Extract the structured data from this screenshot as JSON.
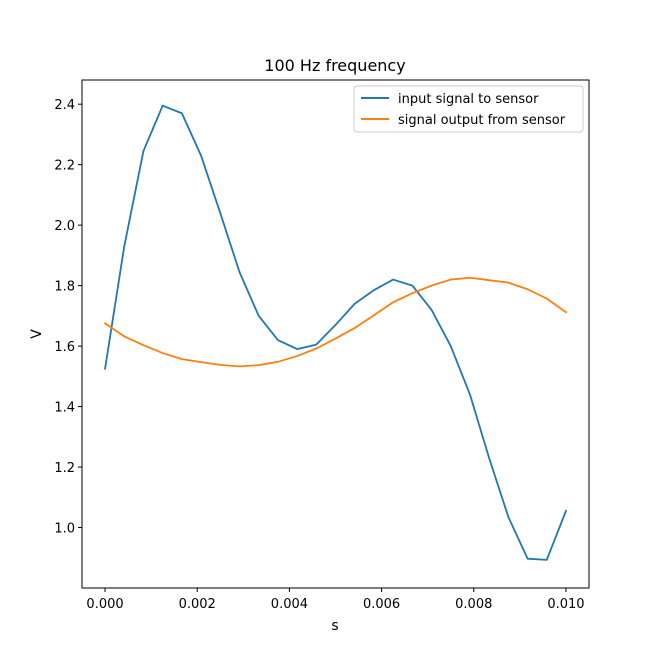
{
  "chart_data": {
    "type": "line",
    "title": "100 Hz frequency",
    "xlabel": "s",
    "ylabel": "V",
    "xlim": [
      -0.0005,
      0.0105
    ],
    "ylim": [
      0.8,
      2.48
    ],
    "grid": false,
    "legend_position": "top-right",
    "x_ticks": [
      0.0,
      0.002,
      0.004,
      0.006,
      0.008,
      0.01
    ],
    "x_tick_labels": [
      "0.000",
      "0.002",
      "0.004",
      "0.006",
      "0.008",
      "0.010"
    ],
    "y_ticks": [
      1.0,
      1.2,
      1.4,
      1.6,
      1.8,
      2.0,
      2.2,
      2.4
    ],
    "y_tick_labels": [
      "1.0",
      "1.2",
      "1.4",
      "1.6",
      "1.8",
      "2.0",
      "2.2",
      "2.4"
    ],
    "x": [
      0.0,
      0.000417,
      0.000833,
      0.00125,
      0.001667,
      0.002083,
      0.0025,
      0.002917,
      0.003333,
      0.00375,
      0.004167,
      0.004583,
      0.005,
      0.005417,
      0.005833,
      0.00625,
      0.006667,
      0.007083,
      0.0075,
      0.007917,
      0.008333,
      0.00875,
      0.009167,
      0.009583,
      0.01
    ],
    "series": [
      {
        "name": "input signal to sensor",
        "color": "#1f77b4",
        "values": [
          1.525,
          1.93,
          2.245,
          2.395,
          2.37,
          2.23,
          2.04,
          1.845,
          1.7,
          1.62,
          1.59,
          1.605,
          1.67,
          1.74,
          1.785,
          1.82,
          1.8,
          1.72,
          1.6,
          1.44,
          1.23,
          1.035,
          0.897,
          0.893,
          1.055
        ]
      },
      {
        "name": "signal output from sensor",
        "color": "#ff7f0e",
        "values": [
          1.675,
          1.632,
          1.603,
          1.577,
          1.557,
          1.547,
          1.538,
          1.533,
          1.537,
          1.548,
          1.567,
          1.592,
          1.625,
          1.66,
          1.702,
          1.745,
          1.775,
          1.8,
          1.82,
          1.826,
          1.818,
          1.81,
          1.788,
          1.757,
          1.712
        ]
      }
    ]
  }
}
